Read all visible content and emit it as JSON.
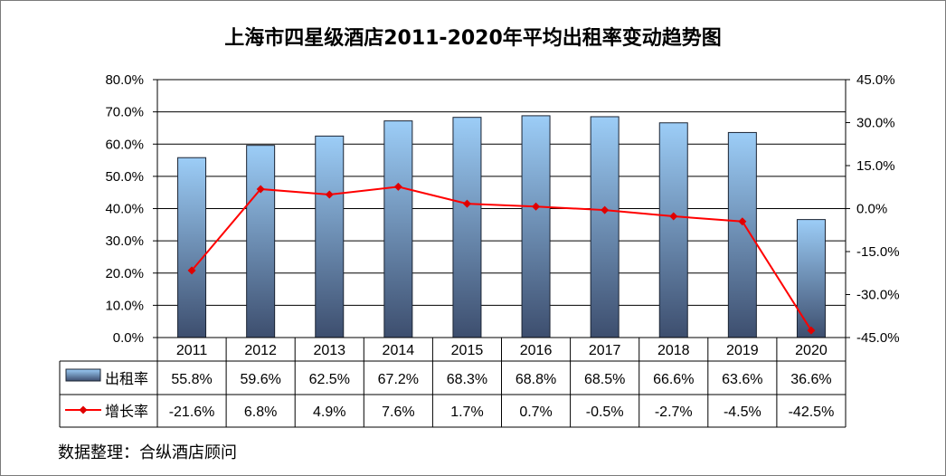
{
  "title": "上海市四星级酒店2011-2020年平均出租率变动趋势图",
  "source": "数据整理：合纵酒店顾问",
  "colors": {
    "bar_top": "#9ccdf7",
    "bar_bottom": "#3d4e6e",
    "line": "#ff0000",
    "marker": "#e00000"
  },
  "chart_data": {
    "type": "bar+line",
    "categories": [
      "2011",
      "2012",
      "2013",
      "2014",
      "2015",
      "2016",
      "2017",
      "2018",
      "2019",
      "2020"
    ],
    "series": [
      {
        "name": "出租率",
        "type": "bar",
        "axis": "left",
        "values": [
          55.8,
          59.6,
          62.5,
          67.2,
          68.3,
          68.8,
          68.5,
          66.6,
          63.6,
          36.6
        ],
        "labels": [
          "55.8%",
          "59.6%",
          "62.5%",
          "67.2%",
          "68.3%",
          "68.8%",
          "68.5%",
          "66.6%",
          "63.6%",
          "36.6%"
        ]
      },
      {
        "name": "增长率",
        "type": "line",
        "axis": "right",
        "values": [
          -21.6,
          6.8,
          4.9,
          7.6,
          1.7,
          0.7,
          -0.5,
          -2.7,
          -4.5,
          -42.5
        ],
        "labels": [
          "-21.6%",
          "6.8%",
          "4.9%",
          "7.6%",
          "1.7%",
          "0.7%",
          "-0.5%",
          "-2.7%",
          "-4.5%",
          "-42.5%"
        ]
      }
    ],
    "left_axis": {
      "ylim": [
        0,
        80
      ],
      "ticks": [
        0,
        10,
        20,
        30,
        40,
        50,
        60,
        70,
        80
      ],
      "tick_labels": [
        "0.0%",
        "10.0%",
        "20.0%",
        "30.0%",
        "40.0%",
        "50.0%",
        "60.0%",
        "70.0%",
        "80.0%"
      ]
    },
    "right_axis": {
      "ylim": [
        -45,
        45
      ],
      "ticks": [
        -45,
        -30,
        -15,
        0,
        15,
        30,
        45
      ],
      "tick_labels": [
        "-45.0%",
        "-30.0%",
        "-15.0%",
        "0.0%",
        "15.0%",
        "30.0%",
        "45.0%"
      ]
    },
    "grid": true,
    "legend": "data-table"
  }
}
